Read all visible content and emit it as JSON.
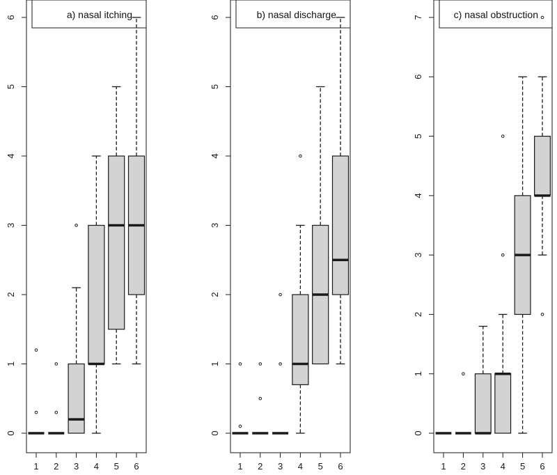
{
  "colors": {
    "box_fill": "#d3d3d3",
    "line": "#1a1a1a",
    "background": "#ffffff"
  },
  "chart_data": [
    {
      "type": "boxplot",
      "title": "a) nasal itching",
      "xlabel": "",
      "ylabel": "",
      "categories": [
        "1",
        "2",
        "3",
        "4",
        "5",
        "6"
      ],
      "ylim": [
        0,
        6
      ],
      "yticks": [
        0,
        1,
        2,
        3,
        4,
        5,
        6
      ],
      "boxes": [
        {
          "category": "1",
          "q1": 0,
          "median": 0,
          "q3": 0,
          "whisker_low": 0,
          "whisker_high": 0,
          "outliers": [
            0.3,
            1.2
          ]
        },
        {
          "category": "2",
          "q1": 0,
          "median": 0,
          "q3": 0,
          "whisker_low": 0,
          "whisker_high": 0,
          "outliers": [
            0.3,
            1.0
          ]
        },
        {
          "category": "3",
          "q1": 0,
          "median": 0.2,
          "q3": 1,
          "whisker_low": 0,
          "whisker_high": 2.1,
          "outliers": [
            3.0
          ]
        },
        {
          "category": "4",
          "q1": 1,
          "median": 1,
          "q3": 3,
          "whisker_low": 0,
          "whisker_high": 4,
          "outliers": []
        },
        {
          "category": "5",
          "q1": 1.5,
          "median": 3,
          "q3": 4,
          "whisker_low": 1,
          "whisker_high": 5,
          "outliers": []
        },
        {
          "category": "6",
          "q1": 2,
          "median": 3,
          "q3": 4,
          "whisker_low": 1,
          "whisker_high": 6,
          "outliers": []
        }
      ]
    },
    {
      "type": "boxplot",
      "title": "b) nasal discharge",
      "xlabel": "",
      "ylabel": "",
      "categories": [
        "1",
        "2",
        "3",
        "4",
        "5",
        "6"
      ],
      "ylim": [
        0,
        6
      ],
      "yticks": [
        0,
        1,
        2,
        3,
        4,
        5,
        6
      ],
      "boxes": [
        {
          "category": "1",
          "q1": 0,
          "median": 0,
          "q3": 0,
          "whisker_low": 0,
          "whisker_high": 0,
          "outliers": [
            0.1,
            1.0
          ]
        },
        {
          "category": "2",
          "q1": 0,
          "median": 0,
          "q3": 0,
          "whisker_low": 0,
          "whisker_high": 0,
          "outliers": [
            0.5,
            1.0
          ]
        },
        {
          "category": "3",
          "q1": 0,
          "median": 0,
          "q3": 0,
          "whisker_low": 0,
          "whisker_high": 0,
          "outliers": [
            1.0,
            2.0
          ]
        },
        {
          "category": "4",
          "q1": 0.7,
          "median": 1,
          "q3": 2,
          "whisker_low": 0,
          "whisker_high": 3,
          "outliers": [
            4.0
          ]
        },
        {
          "category": "5",
          "q1": 1,
          "median": 2,
          "q3": 3,
          "whisker_low": 1,
          "whisker_high": 5,
          "outliers": []
        },
        {
          "category": "6",
          "q1": 2,
          "median": 2.5,
          "q3": 4,
          "whisker_low": 1,
          "whisker_high": 6,
          "outliers": []
        }
      ]
    },
    {
      "type": "boxplot",
      "title": "c) nasal obstruction",
      "xlabel": "",
      "ylabel": "",
      "categories": [
        "1",
        "2",
        "3",
        "4",
        "5",
        "6"
      ],
      "ylim": [
        0,
        7
      ],
      "yticks": [
        0,
        1,
        2,
        3,
        4,
        5,
        6,
        7
      ],
      "boxes": [
        {
          "category": "1",
          "q1": 0,
          "median": 0,
          "q3": 0,
          "whisker_low": 0,
          "whisker_high": 0,
          "outliers": []
        },
        {
          "category": "2",
          "q1": 0,
          "median": 0,
          "q3": 0,
          "whisker_low": 0,
          "whisker_high": 0,
          "outliers": [
            1.0
          ]
        },
        {
          "category": "3",
          "q1": 0,
          "median": 0,
          "q3": 1,
          "whisker_low": 0,
          "whisker_high": 1.8,
          "outliers": []
        },
        {
          "category": "4",
          "q1": 0,
          "median": 1,
          "q3": 1,
          "whisker_low": 0,
          "whisker_high": 2,
          "outliers": [
            3.0,
            5.0
          ]
        },
        {
          "category": "5",
          "q1": 2,
          "median": 3,
          "q3": 4,
          "whisker_low": 0,
          "whisker_high": 6,
          "outliers": []
        },
        {
          "category": "6",
          "q1": 4,
          "median": 4,
          "q3": 5,
          "whisker_low": 3,
          "whisker_high": 6,
          "outliers": [
            2.0,
            7.0
          ]
        }
      ]
    }
  ]
}
